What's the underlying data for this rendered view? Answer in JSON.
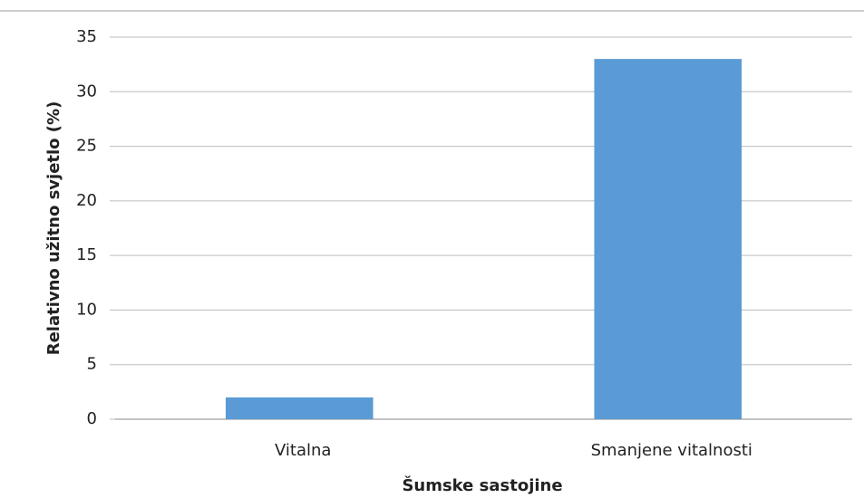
{
  "chart_data": {
    "type": "bar",
    "x_label": "Šumske sastojine",
    "y_label": "Relativno užitno svjetlo (%)",
    "categories": [
      "Vitalna",
      "Smanjene vitalnosti"
    ],
    "values": [
      2,
      33
    ],
    "color": "#5b9bd5",
    "ylim": [
      0,
      35
    ],
    "yticks": [
      0,
      5,
      10,
      15,
      20,
      25,
      30,
      35
    ],
    "grid": true
  }
}
